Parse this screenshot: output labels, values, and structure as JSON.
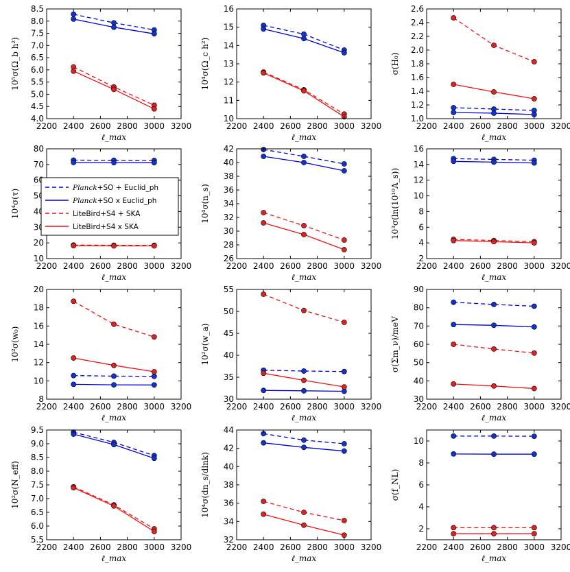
{
  "colors": {
    "blue": "#0000dd",
    "red": "#ee1111",
    "marker_blue": "#1133cc",
    "marker_red": "#dd2222"
  },
  "legend": [
    {
      "planck": "Planck",
      "rest": "+SO + Euclid_ph",
      "dash": true,
      "color": "blue"
    },
    {
      "planck": "Planck",
      "rest": "+SO x Euclid_ph",
      "dash": false,
      "color": "blue"
    },
    {
      "planck": "",
      "rest": "LiteBird+S4 + SKA",
      "dash": true,
      "color": "red"
    },
    {
      "planck": "",
      "rest": "LiteBird+S4 x SKA",
      "dash": false,
      "color": "red"
    }
  ],
  "chart_data": [
    {
      "type": "line",
      "ylabel": "10⁵σ(Ω_b h²)",
      "xlabel": "ℓ_max",
      "xlim": [
        2200,
        3200
      ],
      "xticks": [
        2200,
        2400,
        2600,
        2800,
        3000,
        3200
      ],
      "ylim": [
        4.0,
        8.5
      ],
      "yticks": [
        "4.0",
        "4.5",
        "5.0",
        "5.5",
        "6.0",
        "6.5",
        "7.0",
        "7.5",
        "8.0",
        "8.5"
      ],
      "x": [
        2400,
        2700,
        3000
      ],
      "series": [
        {
          "name": "Planck+SO + Euclid_ph",
          "values": [
            8.28,
            7.93,
            7.64
          ],
          "dash": true,
          "color": "blue"
        },
        {
          "name": "Planck+SO x Euclid_ph",
          "values": [
            8.08,
            7.75,
            7.48
          ],
          "dash": false,
          "color": "blue"
        },
        {
          "name": "LiteBird+S4 + SKA",
          "values": [
            6.12,
            5.3,
            4.55
          ],
          "dash": true,
          "color": "red"
        },
        {
          "name": "LiteBird+S4 x SKA",
          "values": [
            5.95,
            5.2,
            4.4
          ],
          "dash": false,
          "color": "red"
        }
      ]
    },
    {
      "type": "line",
      "ylabel": "10⁴σ(Ω_c h²)",
      "xlabel": "ℓ_max",
      "xlim": [
        2200,
        3200
      ],
      "xticks": [
        2200,
        2400,
        2600,
        2800,
        3000,
        3200
      ],
      "ylim": [
        10,
        16
      ],
      "yticks": [
        "10",
        "11",
        "12",
        "13",
        "14",
        "15",
        "16"
      ],
      "x": [
        2400,
        2700,
        3000
      ],
      "series": [
        {
          "name": "Planck+SO + Euclid_ph",
          "values": [
            15.1,
            14.62,
            13.75
          ],
          "dash": true,
          "color": "blue"
        },
        {
          "name": "Planck+SO x Euclid_ph",
          "values": [
            14.9,
            14.38,
            13.6
          ],
          "dash": false,
          "color": "blue"
        },
        {
          "name": "LiteBird+S4 + SKA",
          "values": [
            12.55,
            11.58,
            10.25
          ],
          "dash": true,
          "color": "red"
        },
        {
          "name": "LiteBird+S4 x SKA",
          "values": [
            12.5,
            11.52,
            10.1
          ],
          "dash": false,
          "color": "red"
        }
      ]
    },
    {
      "type": "line",
      "ylabel": "σ(H₀)",
      "xlabel": "ℓ_max",
      "xlim": [
        2200,
        3200
      ],
      "xticks": [
        2200,
        2400,
        2600,
        2800,
        3000,
        3200
      ],
      "ylim": [
        1.0,
        2.6
      ],
      "yticks": [
        "1.0",
        "1.2",
        "1.4",
        "1.6",
        "1.8",
        "2.0",
        "2.2",
        "2.4",
        "2.6"
      ],
      "x": [
        2400,
        2700,
        3000
      ],
      "series": [
        {
          "name": "Planck+SO + Euclid_ph",
          "values": [
            1.16,
            1.14,
            1.12
          ],
          "dash": true,
          "color": "blue"
        },
        {
          "name": "Planck+SO x Euclid_ph",
          "values": [
            1.09,
            1.08,
            1.06
          ],
          "dash": false,
          "color": "blue"
        },
        {
          "name": "LiteBird+S4 + SKA",
          "values": [
            2.47,
            2.07,
            1.83
          ],
          "dash": true,
          "color": "red"
        },
        {
          "name": "LiteBird+S4 x SKA",
          "values": [
            1.5,
            1.39,
            1.29
          ],
          "dash": false,
          "color": "red"
        }
      ]
    },
    {
      "type": "line",
      "ylabel": "10⁴σ(τ)",
      "xlabel": "ℓ_max",
      "xlim": [
        2200,
        3200
      ],
      "xticks": [
        2200,
        2400,
        2600,
        2800,
        3000,
        3200
      ],
      "ylim": [
        10,
        80
      ],
      "yticks": [
        "10",
        "20",
        "30",
        "40",
        "50",
        "60",
        "70",
        "80"
      ],
      "x": [
        2400,
        2700,
        3000
      ],
      "has_legend": true,
      "series": [
        {
          "name": "Planck+SO + Euclid_ph",
          "values": [
            72.8,
            72.7,
            72.6
          ],
          "dash": true,
          "color": "blue"
        },
        {
          "name": "Planck+SO x Euclid_ph",
          "values": [
            71.3,
            71.2,
            71.1
          ],
          "dash": false,
          "color": "blue"
        },
        {
          "name": "LiteBird+S4 + SKA",
          "values": [
            18.6,
            18.5,
            18.5
          ],
          "dash": true,
          "color": "red"
        },
        {
          "name": "LiteBird+S4 x SKA",
          "values": [
            18.2,
            18.1,
            18.1
          ],
          "dash": false,
          "color": "red"
        }
      ]
    },
    {
      "type": "line",
      "ylabel": "10⁴σ(n_s)",
      "xlabel": "ℓ_max",
      "xlim": [
        2200,
        3200
      ],
      "xticks": [
        2200,
        2400,
        2600,
        2800,
        3000,
        3200
      ],
      "ylim": [
        26,
        42
      ],
      "yticks": [
        "26",
        "28",
        "30",
        "32",
        "34",
        "36",
        "38",
        "40",
        "42"
      ],
      "x": [
        2400,
        2700,
        3000
      ],
      "series": [
        {
          "name": "Planck+SO + Euclid_ph",
          "values": [
            41.9,
            40.9,
            39.8
          ],
          "dash": true,
          "color": "blue"
        },
        {
          "name": "Planck+SO x Euclid_ph",
          "values": [
            40.9,
            40.0,
            38.8
          ],
          "dash": false,
          "color": "blue"
        },
        {
          "name": "LiteBird+S4 + SKA",
          "values": [
            32.7,
            30.8,
            28.7
          ],
          "dash": true,
          "color": "red"
        },
        {
          "name": "LiteBird+S4 x SKA",
          "values": [
            31.2,
            29.5,
            27.3
          ],
          "dash": false,
          "color": "red"
        }
      ]
    },
    {
      "type": "line",
      "ylabel": "10³σ(ln(10¹⁰A_s))",
      "xlabel": "ℓ_max",
      "xlim": [
        2200,
        3200
      ],
      "xticks": [
        2200,
        2400,
        2600,
        2800,
        3000,
        3200
      ],
      "ylim": [
        2,
        16
      ],
      "yticks": [
        "2",
        "4",
        "6",
        "8",
        "10",
        "12",
        "14",
        "16"
      ],
      "x": [
        2400,
        2700,
        3000
      ],
      "series": [
        {
          "name": "Planck+SO + Euclid_ph",
          "values": [
            14.75,
            14.65,
            14.55
          ],
          "dash": true,
          "color": "blue"
        },
        {
          "name": "Planck+SO x Euclid_ph",
          "values": [
            14.4,
            14.3,
            14.2
          ],
          "dash": false,
          "color": "blue"
        },
        {
          "name": "LiteBird+S4 + SKA",
          "values": [
            4.45,
            4.3,
            4.15
          ],
          "dash": true,
          "color": "red"
        },
        {
          "name": "LiteBird+S4 x SKA",
          "values": [
            4.3,
            4.15,
            4.0
          ],
          "dash": false,
          "color": "red"
        }
      ]
    },
    {
      "type": "line",
      "ylabel": "10²σ(w₀)",
      "xlabel": "ℓ_max",
      "xlim": [
        2200,
        3200
      ],
      "xticks": [
        2200,
        2400,
        2600,
        2800,
        3000,
        3200
      ],
      "ylim": [
        8,
        20
      ],
      "yticks": [
        "8",
        "10",
        "12",
        "14",
        "16",
        "18",
        "20"
      ],
      "x": [
        2400,
        2700,
        3000
      ],
      "series": [
        {
          "name": "Planck+SO + Euclid_ph",
          "values": [
            10.58,
            10.52,
            10.5
          ],
          "dash": true,
          "color": "blue"
        },
        {
          "name": "Planck+SO x Euclid_ph",
          "values": [
            9.62,
            9.57,
            9.55
          ],
          "dash": false,
          "color": "blue"
        },
        {
          "name": "LiteBird+S4 + SKA",
          "values": [
            18.7,
            16.2,
            14.8
          ],
          "dash": true,
          "color": "red"
        },
        {
          "name": "LiteBird+S4 x SKA",
          "values": [
            12.5,
            11.7,
            11.0
          ],
          "dash": false,
          "color": "red"
        }
      ]
    },
    {
      "type": "line",
      "ylabel": "10²σ(w_a)",
      "xlabel": "ℓ_max",
      "xlim": [
        2200,
        3200
      ],
      "xticks": [
        2200,
        2400,
        2600,
        2800,
        3000,
        3200
      ],
      "ylim": [
        30,
        55
      ],
      "yticks": [
        "30",
        "35",
        "40",
        "45",
        "50",
        "55"
      ],
      "x": [
        2400,
        2700,
        3000
      ],
      "series": [
        {
          "name": "Planck+SO + Euclid_ph",
          "values": [
            36.6,
            36.4,
            36.3
          ],
          "dash": true,
          "color": "blue"
        },
        {
          "name": "Planck+SO x Euclid_ph",
          "values": [
            32.0,
            31.9,
            31.8
          ],
          "dash": false,
          "color": "blue"
        },
        {
          "name": "LiteBird+S4 + SKA",
          "values": [
            53.9,
            50.2,
            47.5
          ],
          "dash": true,
          "color": "red"
        },
        {
          "name": "LiteBird+S4 x SKA",
          "values": [
            35.9,
            34.3,
            32.8
          ],
          "dash": false,
          "color": "red"
        }
      ]
    },
    {
      "type": "line",
      "ylabel": "σ(Σm_ν)/meV",
      "xlabel": "ℓ_max",
      "xlim": [
        2200,
        3200
      ],
      "xticks": [
        2200,
        2400,
        2600,
        2800,
        3000,
        3200
      ],
      "ylim": [
        30,
        90
      ],
      "yticks": [
        "30",
        "40",
        "50",
        "60",
        "70",
        "80",
        "90"
      ],
      "x": [
        2400,
        2700,
        3000
      ],
      "series": [
        {
          "name": "Planck+SO + Euclid_ph",
          "values": [
            83.0,
            81.8,
            80.8
          ],
          "dash": true,
          "color": "blue"
        },
        {
          "name": "Planck+SO x Euclid_ph",
          "values": [
            70.8,
            70.4,
            69.5
          ],
          "dash": false,
          "color": "blue"
        },
        {
          "name": "LiteBird+S4 + SKA",
          "values": [
            60.0,
            57.4,
            55.2
          ],
          "dash": true,
          "color": "red"
        },
        {
          "name": "LiteBird+S4 x SKA",
          "values": [
            38.3,
            37.2,
            35.8
          ],
          "dash": false,
          "color": "red"
        }
      ]
    },
    {
      "type": "line",
      "ylabel": "10²σ(N_eff)",
      "xlabel": "ℓ_max",
      "xlim": [
        2200,
        3200
      ],
      "xticks": [
        2200,
        2400,
        2600,
        2800,
        3000,
        3200
      ],
      "ylim": [
        5.5,
        9.5
      ],
      "yticks": [
        "5.5",
        "6.0",
        "6.5",
        "7.0",
        "7.5",
        "8.0",
        "8.5",
        "9.0",
        "9.5"
      ],
      "x": [
        2400,
        2700,
        3000
      ],
      "series": [
        {
          "name": "Planck+SO + Euclid_ph",
          "values": [
            9.42,
            9.05,
            8.57
          ],
          "dash": true,
          "color": "blue"
        },
        {
          "name": "Planck+SO x Euclid_ph",
          "values": [
            9.35,
            8.97,
            8.47
          ],
          "dash": false,
          "color": "blue"
        },
        {
          "name": "LiteBird+S4 + SKA",
          "values": [
            7.43,
            6.77,
            5.9
          ],
          "dash": true,
          "color": "red"
        },
        {
          "name": "LiteBird+S4 x SKA",
          "values": [
            7.4,
            6.73,
            5.8
          ],
          "dash": false,
          "color": "red"
        }
      ]
    },
    {
      "type": "line",
      "ylabel": "10⁴σ(dn_s/dlnk)",
      "xlabel": "ℓ_max",
      "xlim": [
        2200,
        3200
      ],
      "xticks": [
        2200,
        2400,
        2600,
        2800,
        3000,
        3200
      ],
      "ylim": [
        32,
        44
      ],
      "yticks": [
        "32",
        "34",
        "36",
        "38",
        "40",
        "42",
        "44"
      ],
      "x": [
        2400,
        2700,
        3000
      ],
      "series": [
        {
          "name": "Planck+SO + Euclid_ph",
          "values": [
            43.6,
            42.9,
            42.5
          ],
          "dash": true,
          "color": "blue"
        },
        {
          "name": "Planck+SO x Euclid_ph",
          "values": [
            42.6,
            42.1,
            41.7
          ],
          "dash": false,
          "color": "blue"
        },
        {
          "name": "LiteBird+S4 + SKA",
          "values": [
            36.2,
            35.0,
            34.1
          ],
          "dash": true,
          "color": "red"
        },
        {
          "name": "LiteBird+S4 x SKA",
          "values": [
            34.8,
            33.6,
            32.5
          ],
          "dash": false,
          "color": "red"
        }
      ]
    },
    {
      "type": "line",
      "ylabel": "σ(f_NL)",
      "xlabel": "ℓ_max",
      "xlim": [
        2200,
        3200
      ],
      "xticks": [
        2200,
        2400,
        2600,
        2800,
        3000,
        3200
      ],
      "ylim": [
        1.0,
        11.0
      ],
      "yticks": [
        "2",
        "4",
        "6",
        "8",
        "10"
      ],
      "ytick_values": [
        2,
        4,
        6,
        8,
        10
      ],
      "x": [
        2400,
        2700,
        3000
      ],
      "series": [
        {
          "name": "Planck+SO + Euclid_ph",
          "values": [
            10.45,
            10.45,
            10.43
          ],
          "dash": true,
          "color": "blue"
        },
        {
          "name": "Planck+SO x Euclid_ph",
          "values": [
            8.82,
            8.8,
            8.8
          ],
          "dash": false,
          "color": "blue"
        },
        {
          "name": "LiteBird+S4 + SKA",
          "values": [
            2.1,
            2.1,
            2.1
          ],
          "dash": true,
          "color": "red"
        },
        {
          "name": "LiteBird+S4 x SKA",
          "values": [
            1.55,
            1.55,
            1.55
          ],
          "dash": false,
          "color": "red"
        }
      ]
    }
  ]
}
